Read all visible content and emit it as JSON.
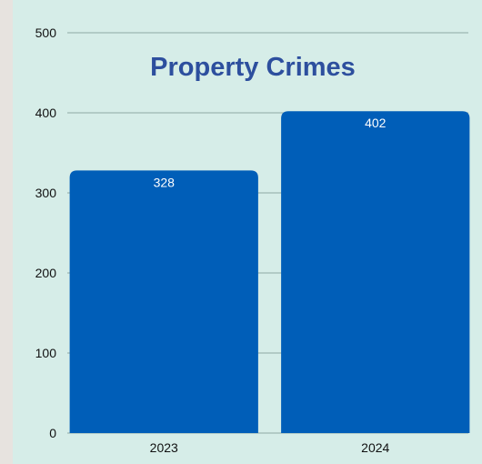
{
  "chart_data": {
    "type": "bar",
    "title": "Property Crimes",
    "categories": [
      "2023",
      "2024"
    ],
    "values": [
      328,
      402
    ],
    "data_labels": [
      "328",
      "402"
    ],
    "y_ticks": [
      "0",
      "100",
      "200",
      "300",
      "400",
      "500"
    ],
    "ylim": [
      0,
      500
    ],
    "grid": true,
    "legend": "none",
    "colors": {
      "bar": "#005eb8",
      "title": "#2d4f9e",
      "panel": "#d6ede8",
      "grid": "#8fa9a4"
    }
  }
}
